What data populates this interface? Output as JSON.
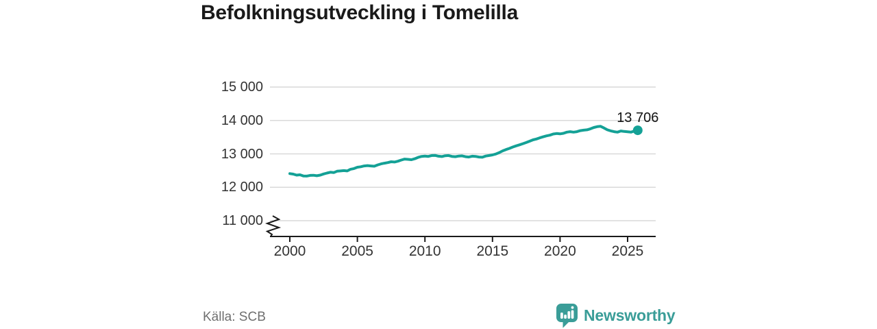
{
  "header": {
    "title": "Befolkningsutveckling i Tomelilla"
  },
  "footer": {
    "source": "Källa: SCB",
    "brand": "Newsworthy"
  },
  "colors": {
    "line": "#14a196",
    "logo_teal": "#3a9d98",
    "grid": "#d9d9d9",
    "axis": "#1a1a1a",
    "tick_text": "#333333",
    "title_text": "#1a1a1a",
    "muted_text": "#6f6f6f"
  },
  "icons": {
    "brand_mark": "newsworthy-bars-speech-bubble"
  },
  "chart_data": {
    "type": "line",
    "title": "Befolkningsutveckling i Tomelilla",
    "xlabel": "",
    "ylabel": "",
    "source": "Källa: SCB",
    "grid": "horizontal",
    "y_axis_break": true,
    "xlim": [
      2000,
      2026.7
    ],
    "ylim": [
      11000,
      15000
    ],
    "x_ticks": [
      2000,
      2005,
      2010,
      2015,
      2020,
      2025
    ],
    "y_ticks": [
      11000,
      12000,
      13000,
      14000,
      15000
    ],
    "y_tick_labels": [
      "11 000",
      "12 000",
      "13 000",
      "14 000",
      "15 000"
    ],
    "line_color": "#14a196",
    "end_label": {
      "text": "13 706",
      "value": 13706,
      "x": 2025.75
    },
    "series": [
      {
        "points": [
          [
            2000.0,
            12410
          ],
          [
            2000.25,
            12395
          ],
          [
            2000.5,
            12365
          ],
          [
            2000.75,
            12375
          ],
          [
            2001.0,
            12340
          ],
          [
            2001.25,
            12335
          ],
          [
            2001.5,
            12355
          ],
          [
            2001.75,
            12360
          ],
          [
            2002.0,
            12345
          ],
          [
            2002.25,
            12365
          ],
          [
            2002.5,
            12400
          ],
          [
            2002.75,
            12425
          ],
          [
            2003.0,
            12450
          ],
          [
            2003.25,
            12440
          ],
          [
            2003.5,
            12480
          ],
          [
            2003.75,
            12490
          ],
          [
            2004.0,
            12500
          ],
          [
            2004.25,
            12490
          ],
          [
            2004.5,
            12540
          ],
          [
            2004.75,
            12560
          ],
          [
            2005.0,
            12600
          ],
          [
            2005.25,
            12615
          ],
          [
            2005.5,
            12640
          ],
          [
            2005.75,
            12650
          ],
          [
            2006.0,
            12640
          ],
          [
            2006.25,
            12630
          ],
          [
            2006.5,
            12670
          ],
          [
            2006.75,
            12700
          ],
          [
            2007.0,
            12720
          ],
          [
            2007.25,
            12740
          ],
          [
            2007.5,
            12765
          ],
          [
            2007.75,
            12755
          ],
          [
            2008.0,
            12780
          ],
          [
            2008.25,
            12815
          ],
          [
            2008.5,
            12845
          ],
          [
            2008.75,
            12835
          ],
          [
            2009.0,
            12825
          ],
          [
            2009.25,
            12855
          ],
          [
            2009.5,
            12895
          ],
          [
            2009.75,
            12925
          ],
          [
            2010.0,
            12935
          ],
          [
            2010.25,
            12925
          ],
          [
            2010.5,
            12950
          ],
          [
            2010.75,
            12955
          ],
          [
            2011.0,
            12930
          ],
          [
            2011.25,
            12920
          ],
          [
            2011.5,
            12945
          ],
          [
            2011.75,
            12950
          ],
          [
            2012.0,
            12925
          ],
          [
            2012.25,
            12915
          ],
          [
            2012.5,
            12935
          ],
          [
            2012.75,
            12940
          ],
          [
            2013.0,
            12915
          ],
          [
            2013.25,
            12905
          ],
          [
            2013.5,
            12930
          ],
          [
            2013.75,
            12925
          ],
          [
            2014.0,
            12905
          ],
          [
            2014.25,
            12900
          ],
          [
            2014.5,
            12935
          ],
          [
            2014.75,
            12950
          ],
          [
            2015.0,
            12970
          ],
          [
            2015.25,
            12995
          ],
          [
            2015.5,
            13040
          ],
          [
            2015.75,
            13090
          ],
          [
            2016.0,
            13130
          ],
          [
            2016.25,
            13165
          ],
          [
            2016.5,
            13205
          ],
          [
            2016.75,
            13240
          ],
          [
            2017.0,
            13270
          ],
          [
            2017.25,
            13305
          ],
          [
            2017.5,
            13340
          ],
          [
            2017.75,
            13380
          ],
          [
            2018.0,
            13420
          ],
          [
            2018.25,
            13445
          ],
          [
            2018.5,
            13480
          ],
          [
            2018.75,
            13510
          ],
          [
            2019.0,
            13540
          ],
          [
            2019.25,
            13560
          ],
          [
            2019.5,
            13595
          ],
          [
            2019.75,
            13610
          ],
          [
            2020.0,
            13600
          ],
          [
            2020.25,
            13615
          ],
          [
            2020.5,
            13650
          ],
          [
            2020.75,
            13665
          ],
          [
            2021.0,
            13650
          ],
          [
            2021.25,
            13665
          ],
          [
            2021.5,
            13695
          ],
          [
            2021.75,
            13710
          ],
          [
            2022.0,
            13720
          ],
          [
            2022.25,
            13750
          ],
          [
            2022.5,
            13790
          ],
          [
            2022.75,
            13815
          ],
          [
            2023.0,
            13825
          ],
          [
            2023.25,
            13775
          ],
          [
            2023.5,
            13720
          ],
          [
            2023.75,
            13690
          ],
          [
            2024.0,
            13665
          ],
          [
            2024.25,
            13650
          ],
          [
            2024.5,
            13685
          ],
          [
            2024.75,
            13670
          ],
          [
            2025.0,
            13660
          ],
          [
            2025.25,
            13650
          ],
          [
            2025.5,
            13685
          ],
          [
            2025.75,
            13706
          ]
        ]
      }
    ]
  }
}
